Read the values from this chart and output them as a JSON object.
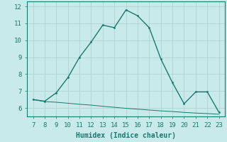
{
  "xlabel": "Humidex (Indice chaleur)",
  "x_line1": [
    7,
    8,
    9,
    10,
    11,
    12,
    13,
    14,
    15,
    16,
    17,
    18,
    19,
    20,
    21,
    22,
    23
  ],
  "y_line1": [
    6.5,
    6.4,
    6.9,
    7.8,
    9.0,
    9.9,
    10.9,
    10.75,
    11.8,
    11.45,
    10.75,
    8.9,
    7.5,
    6.25,
    6.95,
    6.95,
    5.75
  ],
  "x_line2": [
    7,
    8,
    9,
    10,
    11,
    12,
    13,
    14,
    15,
    16,
    17,
    18,
    19,
    20,
    21,
    22,
    23
  ],
  "y_line2": [
    6.5,
    6.38,
    6.34,
    6.28,
    6.22,
    6.17,
    6.1,
    6.04,
    5.98,
    5.93,
    5.88,
    5.83,
    5.79,
    5.74,
    5.7,
    5.67,
    5.63
  ],
  "line_color": "#1a7a6e",
  "bg_color": "#c8eaea",
  "grid_color": "#aacfcf",
  "xlim": [
    6.5,
    23.5
  ],
  "ylim": [
    5.5,
    12.3
  ],
  "xticks": [
    7,
    8,
    9,
    10,
    11,
    12,
    13,
    14,
    15,
    16,
    17,
    18,
    19,
    20,
    21,
    22,
    23
  ],
  "yticks": [
    6,
    7,
    8,
    9,
    10,
    11,
    12
  ]
}
